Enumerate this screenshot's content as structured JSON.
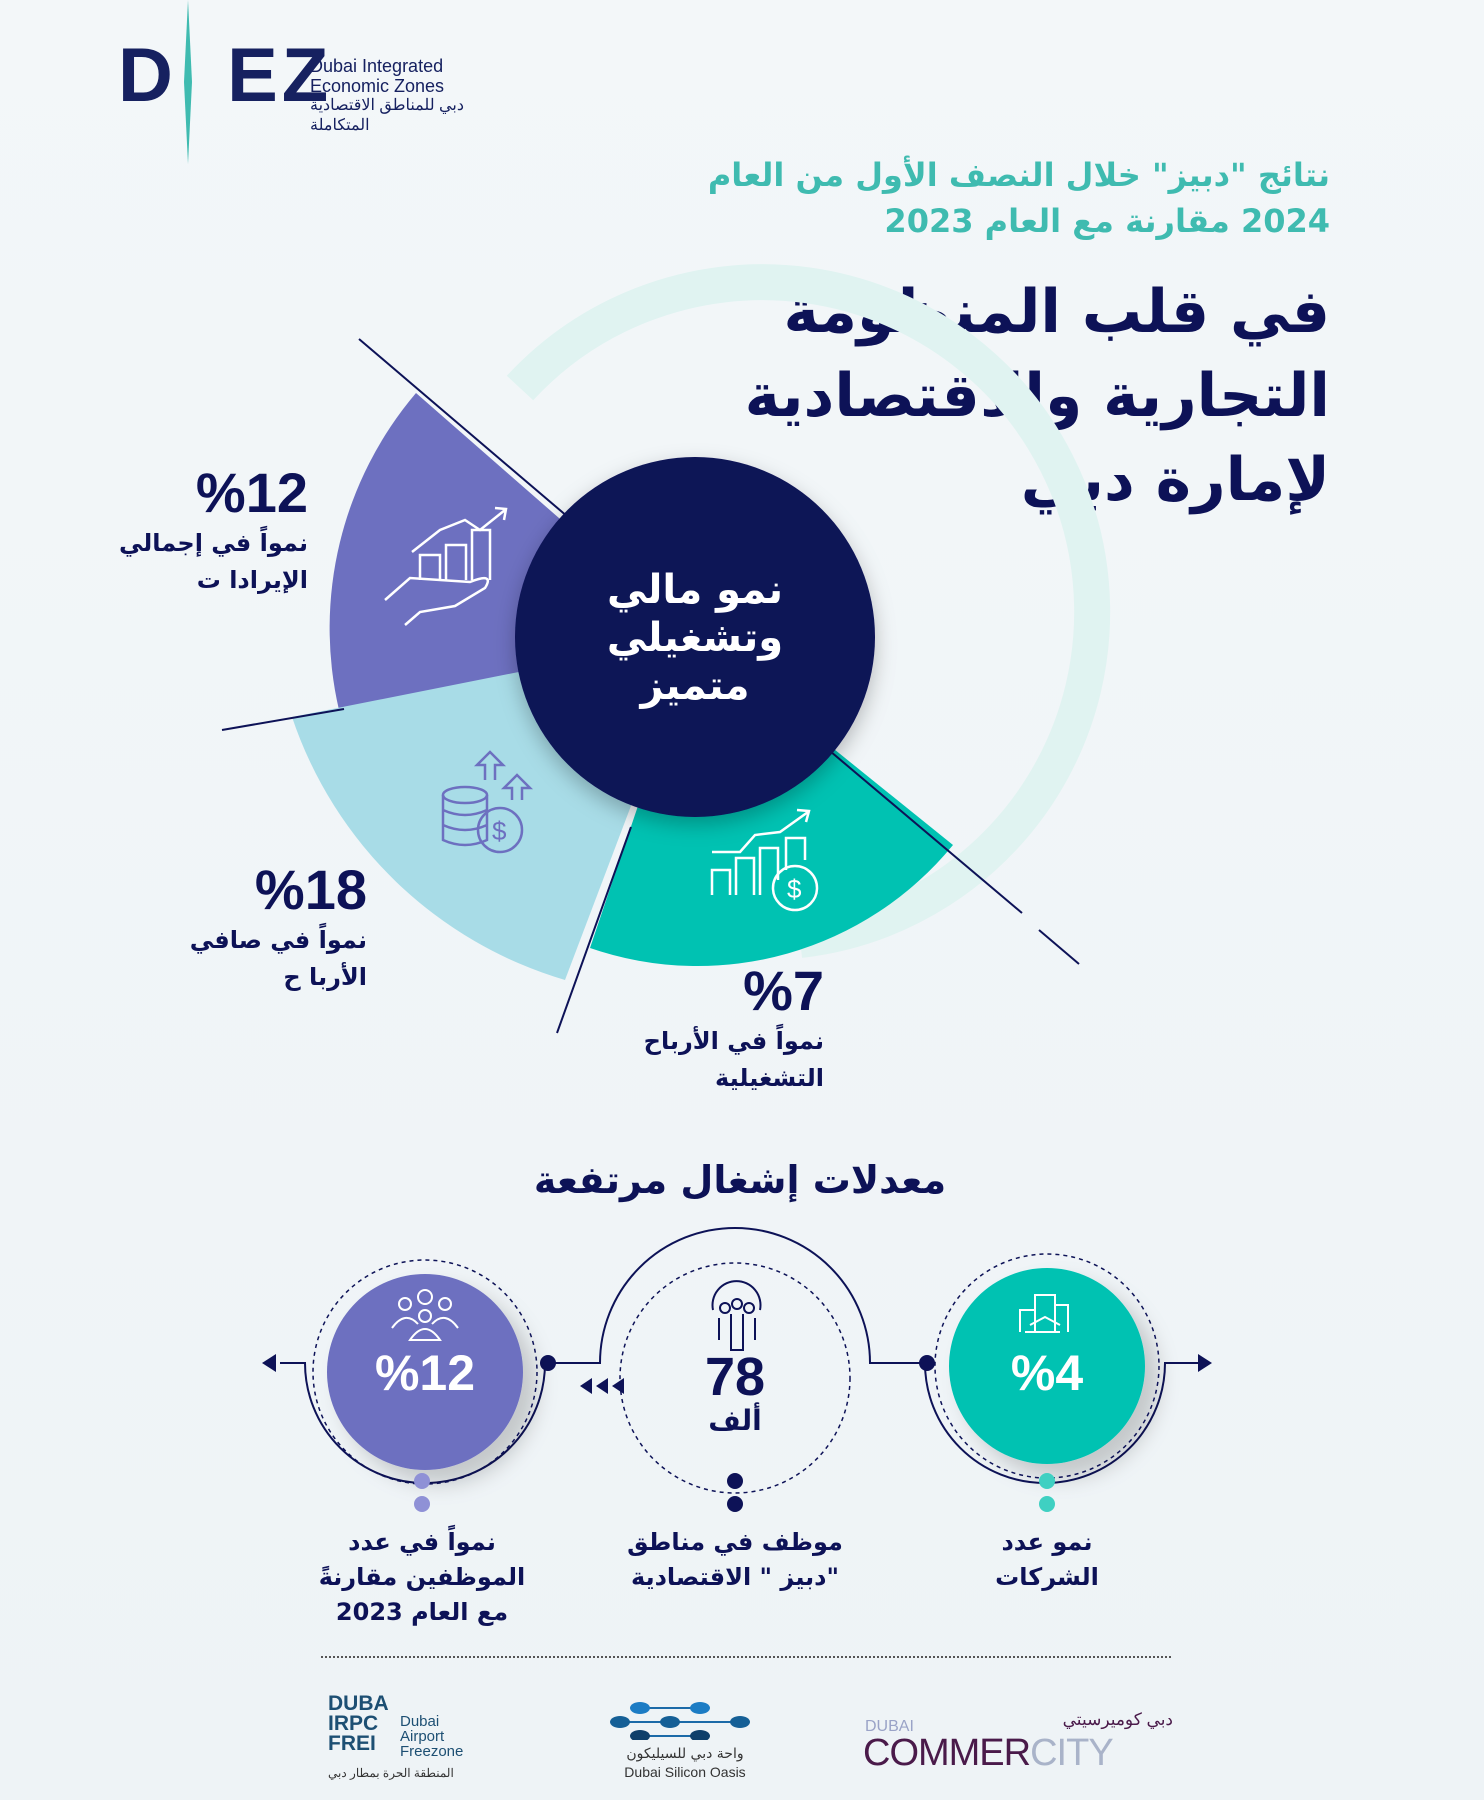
{
  "logo": {
    "letters": "DIEZ",
    "en_line1": "Dubai Integrated",
    "en_line2": "Economic Zones",
    "ar_line": "دبي للمناطق الاقتصادية المتكاملة"
  },
  "subtitle": {
    "line1": "نتائج \"دبيز\" خلال النصف الأول من العام",
    "line2": "2024 مقارنة مع العام 2023"
  },
  "title": {
    "line1": "في قلب المنظومة",
    "line2": "التجارية والاقتصادية",
    "line3": "لإمارة دبي"
  },
  "center": {
    "line1": "نمو مالي",
    "line2": "وتشغيلي",
    "line3": "متميز"
  },
  "colors": {
    "navy": "#0d1257",
    "purple": "#6d70c0",
    "lightblue": "#a8dce7",
    "teal": "#00c2b2",
    "ring": "#e0f3f1"
  },
  "financial": [
    {
      "value": "%12",
      "line1": "نمواً في إجمالي",
      "line2": "الإيرادا ت",
      "icon": "hand-growth-chart-icon"
    },
    {
      "value": "%18",
      "line1": "نمواً في صافي",
      "line2": "الأربا ح",
      "icon": "coins-dollar-arrows-icon"
    },
    {
      "value": "%7",
      "line1": "نمواً في الأرباح",
      "line2": "التشغيلية",
      "icon": "bar-chart-dollar-icon"
    }
  ],
  "occupancy": {
    "heading": "معدلات إشغال مرتفعة",
    "items": [
      {
        "value": "%4",
        "line1": "نمو عدد",
        "line2": "الشركات",
        "icon": "buildings-icon"
      },
      {
        "value": "78",
        "unit": "ألف",
        "line1": "موظف في مناطق",
        "line2": "\"دبيز \" الاقتصادية",
        "icon": "globe-people-icon"
      },
      {
        "value": "%12",
        "line1": "نمواً في عدد",
        "line2": "الموظفين مقارنةً",
        "line3": "مع العام 2023",
        "icon": "people-group-icon"
      }
    ]
  },
  "partners": {
    "dafz": {
      "mark1": "DUBA",
      "mark2": "IRPC",
      "mark3": "FREI",
      "en1": "Dubai",
      "en2": "Airport",
      "en3": "Freezone",
      "ar": "المنطقة الحرة بمطار دبي"
    },
    "dso": {
      "ar": "واحة دبي للسيليكون",
      "en": "Dubai Silicon Oasis"
    },
    "dcc": {
      "top": "DUBAI",
      "ar": "دبي كوميرسيتي",
      "word1": "COMMER",
      "word2": "CITY"
    }
  }
}
